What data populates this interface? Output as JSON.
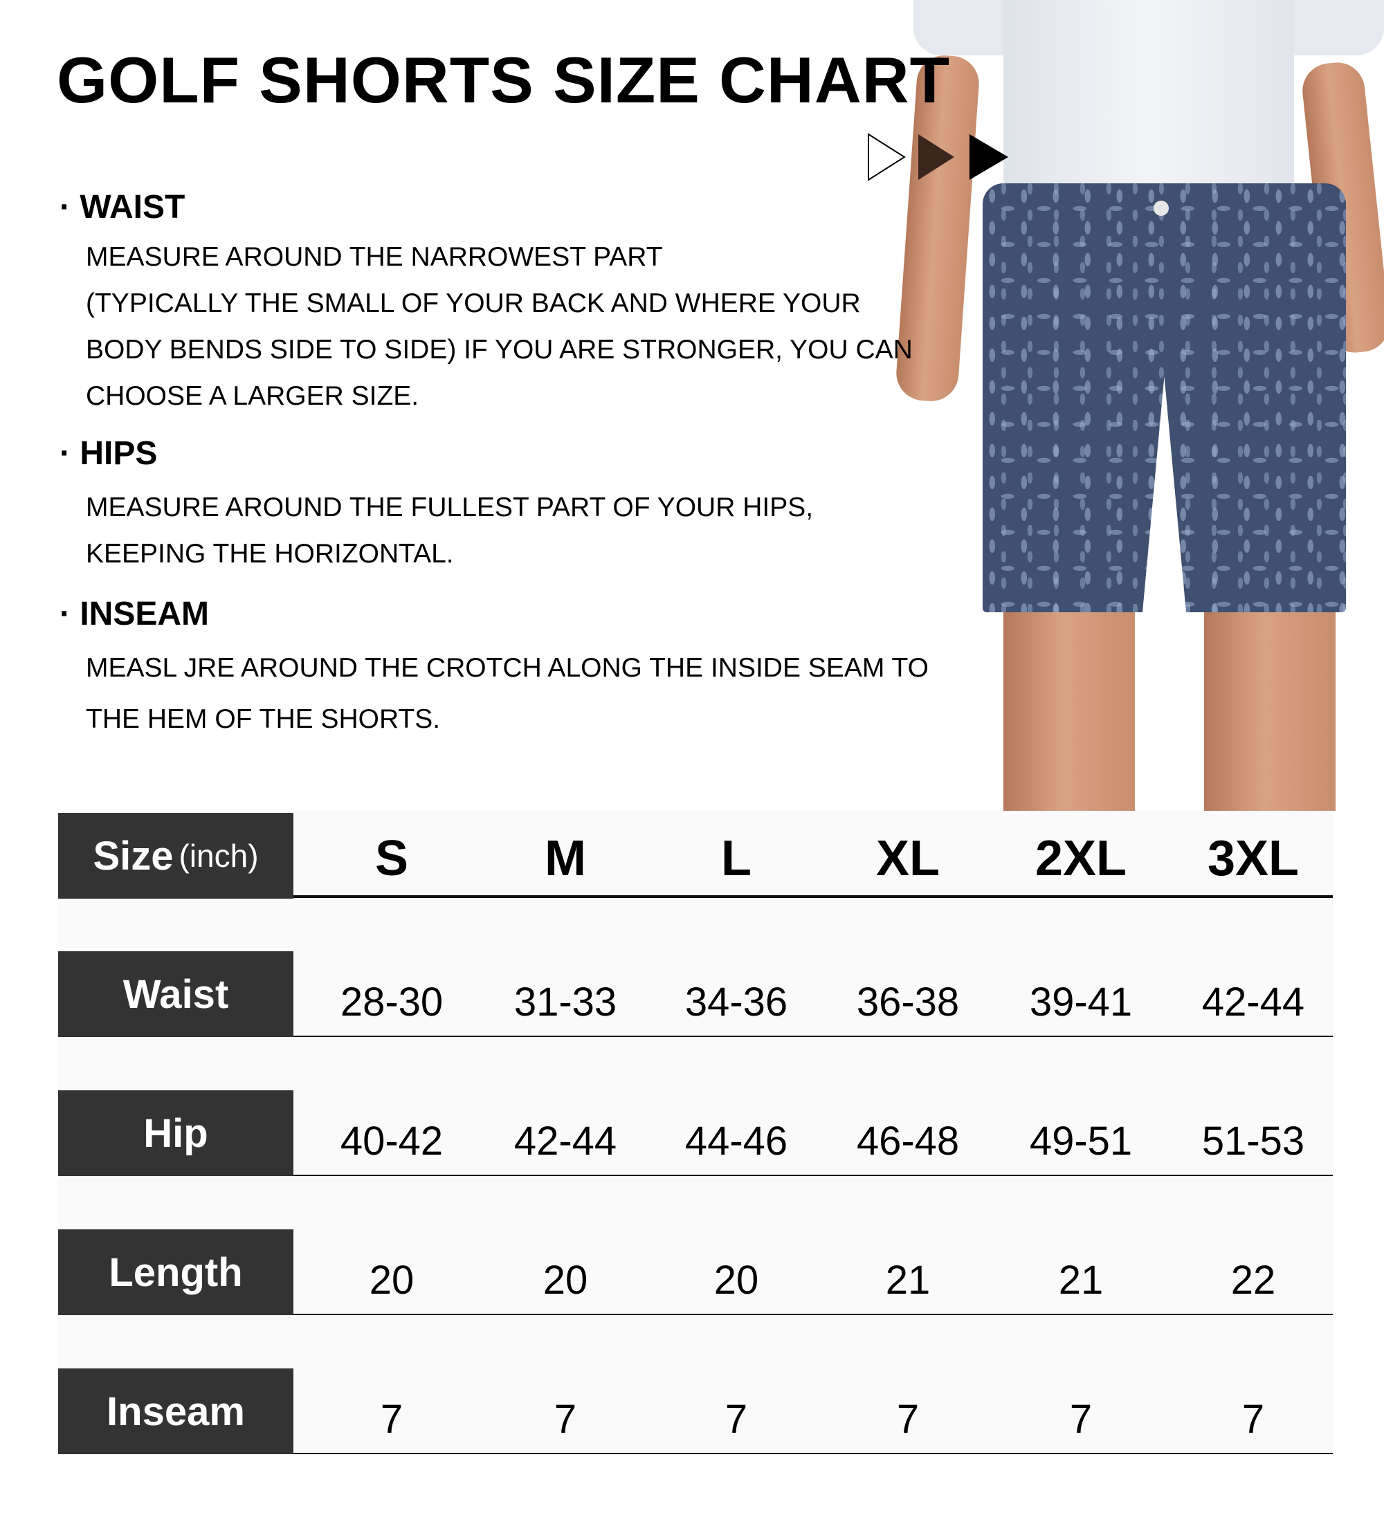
{
  "title": "GOLF SHORTS SIZE CHART",
  "sections": [
    {
      "heading": "· WAIST",
      "lines": [
        "MEASURE AROUND THE NARROWEST PART",
        "(TYPICALLY THE SMALL OF YOUR BACK AND WHERE YOUR",
        "BODY BENDS SIDE TO SIDE) IF YOU ARE STRONGER, YOU CAN",
        "CHOOSE A LARGER SIZE."
      ]
    },
    {
      "heading": "· HIPS",
      "lines": [
        "MEASURE AROUND THE FULLEST PART OF YOUR HIPS,",
        "KEEPING  THE HORIZONTAL."
      ]
    },
    {
      "heading": "· INSEAM",
      "lines": [
        "MEASL JRE AROUND THE CROTCH ALONG THE INSIDE SEAM TO",
        "THE HEM OF THE SHORTS."
      ]
    }
  ],
  "table": {
    "header_label": "Size",
    "header_unit": "(inch)",
    "sizes": [
      "S",
      "M",
      "L",
      "XL",
      "2XL",
      "3XL"
    ],
    "rows": [
      {
        "label": "Waist",
        "values": [
          "28-30",
          "31-33",
          "34-36",
          "36-38",
          "39-41",
          "42-44"
        ]
      },
      {
        "label": "Hip",
        "values": [
          "40-42",
          "42-44",
          "44-46",
          "46-48",
          "49-51",
          "51-53"
        ]
      },
      {
        "label": "Length",
        "values": [
          "20",
          "20",
          "20",
          "21",
          "21",
          "22"
        ]
      },
      {
        "label": "Inseam",
        "values": [
          "7",
          "7",
          "7",
          "7",
          "7",
          "7"
        ]
      }
    ]
  },
  "colors": {
    "label_bg": "#333333",
    "shorts": "#3f5070",
    "table_bg": "#fafafa"
  }
}
